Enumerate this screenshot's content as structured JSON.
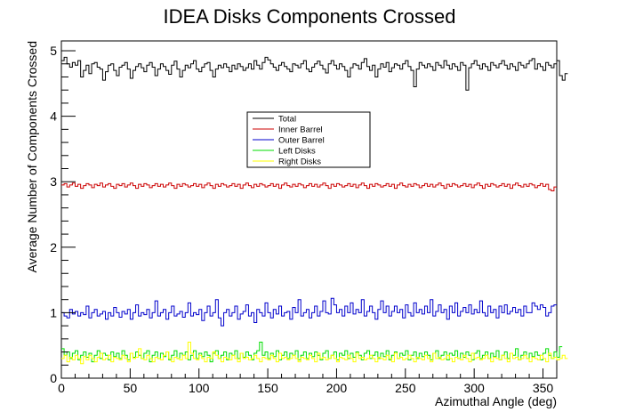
{
  "chart_data": {
    "type": "line",
    "title": "IDEA Disks Components Crossed",
    "xlabel": "Azimuthal Angle (deg)",
    "ylabel": "Average Number of Components Crossed",
    "xlim": [
      0,
      360
    ],
    "ylim": [
      0,
      5.15
    ],
    "x_ticks": [
      0,
      50,
      100,
      150,
      200,
      250,
      300,
      350
    ],
    "y_ticks": [
      0,
      1,
      2,
      3,
      4,
      5
    ],
    "bins": 180,
    "legend_position": "upper-center",
    "series": [
      {
        "name": "Total",
        "color": "#000000",
        "values": [
          4.85,
          4.9,
          4.8,
          4.75,
          4.82,
          4.78,
          4.85,
          4.6,
          4.7,
          4.78,
          4.65,
          4.8,
          4.82,
          4.75,
          4.72,
          4.55,
          4.68,
          4.78,
          4.8,
          4.7,
          4.62,
          4.75,
          4.78,
          4.82,
          4.72,
          4.58,
          4.7,
          4.76,
          4.8,
          4.74,
          4.68,
          4.78,
          4.82,
          4.75,
          4.62,
          4.72,
          4.8,
          4.76,
          4.7,
          4.64,
          4.78,
          4.84,
          4.72,
          4.6,
          4.7,
          4.78,
          4.74,
          4.8,
          4.85,
          4.72,
          4.68,
          4.75,
          4.8,
          4.82,
          4.7,
          4.6,
          4.72,
          4.78,
          4.74,
          4.8,
          4.75,
          4.68,
          4.78,
          4.72,
          4.8,
          4.76,
          4.7,
          4.74,
          4.8,
          4.72,
          4.85,
          4.78,
          4.72,
          4.82,
          4.9,
          4.86,
          4.8,
          4.75,
          4.7,
          4.78,
          4.82,
          4.76,
          4.72,
          4.68,
          4.8,
          4.78,
          4.74,
          4.8,
          4.85,
          4.72,
          4.68,
          4.75,
          4.8,
          4.84,
          4.78,
          4.72,
          4.66,
          4.8,
          4.85,
          4.78,
          4.72,
          4.8,
          4.76,
          4.7,
          4.6,
          4.74,
          4.8,
          4.78,
          4.72,
          4.82,
          4.88,
          4.76,
          4.7,
          4.78,
          4.6,
          4.72,
          4.8,
          4.75,
          4.82,
          4.68,
          4.74,
          4.8,
          4.78,
          4.72,
          4.8,
          4.85,
          4.76,
          4.7,
          4.45,
          4.72,
          4.82,
          4.78,
          4.74,
          4.8,
          4.76,
          4.7,
          4.82,
          4.78,
          4.74,
          4.85,
          4.78,
          4.72,
          4.8,
          4.76,
          4.7,
          4.82,
          4.78,
          4.4,
          4.74,
          4.8,
          4.85,
          4.78,
          4.72,
          4.8,
          4.76,
          4.7,
          4.82,
          4.78,
          4.74,
          4.8,
          4.85,
          4.78,
          4.72,
          4.8,
          4.76,
          4.7,
          4.82,
          4.78,
          4.74,
          4.8,
          4.85,
          4.88,
          4.72,
          4.8,
          4.76,
          4.7,
          4.82,
          4.78,
          4.74,
          4.8,
          4.85,
          4.62,
          4.55,
          4.65
        ]
      },
      {
        "name": "Inner Barrel",
        "color": "#cc0000",
        "values": [
          2.95,
          2.97,
          2.92,
          2.95,
          2.98,
          2.93,
          2.96,
          2.9,
          2.94,
          2.97,
          2.95,
          2.91,
          2.96,
          2.94,
          2.98,
          2.92,
          2.95,
          2.97,
          2.93,
          2.9,
          2.96,
          2.94,
          2.97,
          2.92,
          2.95,
          2.98,
          2.94,
          2.9,
          2.96,
          2.93,
          2.97,
          2.95,
          2.91,
          2.94,
          2.97,
          2.93,
          2.96,
          2.92,
          2.95,
          2.98,
          2.94,
          2.9,
          2.96,
          2.93,
          2.97,
          2.95,
          2.92,
          2.94,
          2.97,
          2.93,
          2.96,
          2.91,
          2.95,
          2.98,
          2.94,
          2.9,
          2.96,
          2.93,
          2.97,
          2.95,
          2.92,
          2.94,
          2.97,
          2.93,
          2.96,
          2.9,
          2.95,
          2.98,
          2.94,
          2.91,
          2.96,
          2.93,
          2.97,
          2.95,
          2.92,
          2.94,
          2.97,
          2.93,
          2.96,
          2.9,
          2.95,
          2.98,
          2.94,
          2.92,
          2.96,
          2.93,
          2.97,
          2.95,
          2.91,
          2.94,
          2.97,
          2.93,
          2.96,
          2.92,
          2.95,
          2.98,
          2.94,
          2.9,
          2.96,
          2.93,
          2.97,
          2.95,
          2.92,
          2.94,
          2.97,
          2.93,
          2.96,
          2.91,
          2.95,
          2.98,
          2.94,
          2.9,
          2.96,
          2.93,
          2.97,
          2.95,
          2.92,
          2.94,
          2.97,
          2.93,
          2.96,
          2.9,
          2.95,
          2.98,
          2.94,
          2.92,
          2.96,
          2.93,
          2.97,
          2.95,
          2.91,
          2.94,
          2.97,
          2.93,
          2.96,
          2.92,
          2.95,
          2.98,
          2.94,
          2.9,
          2.96,
          2.93,
          2.97,
          2.95,
          2.92,
          2.94,
          2.97,
          2.93,
          2.96,
          2.91,
          2.95,
          2.98,
          2.94,
          2.9,
          2.96,
          2.93,
          2.97,
          2.95,
          2.92,
          2.94,
          2.97,
          2.93,
          2.96,
          2.9,
          2.95,
          2.98,
          2.94,
          2.92,
          2.96,
          2.93,
          2.97,
          2.95,
          2.91,
          2.94,
          2.97,
          2.93,
          2.96,
          2.88,
          2.86,
          2.92
        ]
      },
      {
        "name": "Outer Barrel",
        "color": "#0000cc",
        "values": [
          1.0,
          0.95,
          0.92,
          1.05,
          0.98,
          1.02,
          0.95,
          1.0,
          0.97,
          1.1,
          0.92,
          1.0,
          1.05,
          0.95,
          0.98,
          1.02,
          0.9,
          1.0,
          0.95,
          1.08,
          1.0,
          0.93,
          1.02,
          0.98,
          1.05,
          0.9,
          1.0,
          1.12,
          0.95,
          1.0,
          0.97,
          1.05,
          0.92,
          1.0,
          1.18,
          0.95,
          1.0,
          1.05,
          0.9,
          1.0,
          1.1,
          0.95,
          0.98,
          1.02,
          0.93,
          1.0,
          1.15,
          0.95,
          1.0,
          0.97,
          1.05,
          0.88,
          1.0,
          1.1,
          0.95,
          1.0,
          1.2,
          0.92,
          0.8,
          1.0,
          1.05,
          0.95,
          1.0,
          1.1,
          0.9,
          0.98,
          1.02,
          1.12,
          0.95,
          1.0,
          0.85,
          1.05,
          1.0,
          0.95,
          1.15,
          1.0,
          0.92,
          1.05,
          0.98,
          1.1,
          0.95,
          1.0,
          1.02,
          0.9,
          1.08,
          1.0,
          1.2,
          0.95,
          1.0,
          1.05,
          0.92,
          1.0,
          1.1,
          0.95,
          1.02,
          1.18,
          1.0,
          0.98,
          1.22,
          1.12,
          1.0,
          1.05,
          0.95,
          1.1,
          1.0,
          1.15,
          0.98,
          1.05,
          1.0,
          1.2,
          0.95,
          1.02,
          1.1,
          1.0,
          0.9,
          1.05,
          1.18,
          1.0,
          1.1,
          0.95,
          1.02,
          1.1,
          1.0,
          1.05,
          0.92,
          1.12,
          1.0,
          0.95,
          1.15,
          1.0,
          1.05,
          0.98,
          1.1,
          1.0,
          1.2,
          0.95,
          1.02,
          1.12,
          1.0,
          1.05,
          0.9,
          1.1,
          1.0,
          1.15,
          0.95,
          1.02,
          1.08,
          1.0,
          1.12,
          0.98,
          1.05,
          1.0,
          1.18,
          1.0,
          0.95,
          1.1,
          1.0,
          1.05,
          0.92,
          1.1,
          1.0,
          1.12,
          0.98,
          1.02,
          1.08,
          1.0,
          1.05,
          0.95,
          1.1,
          1.0,
          1.0,
          1.15,
          1.1,
          1.05,
          1.12,
          1.08,
          0.95,
          1.0,
          1.1,
          1.12
        ]
      },
      {
        "name": "Left Disks",
        "color": "#00dd00",
        "values": [
          0.45,
          0.35,
          0.4,
          0.3,
          0.38,
          0.42,
          0.28,
          0.35,
          0.4,
          0.32,
          0.38,
          0.25,
          0.35,
          0.42,
          0.3,
          0.38,
          0.35,
          0.28,
          0.4,
          0.33,
          0.38,
          0.3,
          0.42,
          0.35,
          0.28,
          0.38,
          0.32,
          0.4,
          0.35,
          0.3,
          0.38,
          0.42,
          0.25,
          0.35,
          0.4,
          0.3,
          0.38,
          0.33,
          0.4,
          0.28,
          0.35,
          0.42,
          0.3,
          0.38,
          0.35,
          0.4,
          0.28,
          0.35,
          0.42,
          0.3,
          0.38,
          0.33,
          0.4,
          0.35,
          0.25,
          0.38,
          0.42,
          0.3,
          0.35,
          0.4,
          0.28,
          0.38,
          0.35,
          0.42,
          0.3,
          0.38,
          0.32,
          0.4,
          0.35,
          0.28,
          0.38,
          0.42,
          0.55,
          0.35,
          0.4,
          0.3,
          0.38,
          0.33,
          0.42,
          0.28,
          0.35,
          0.4,
          0.3,
          0.38,
          0.35,
          0.42,
          0.28,
          0.35,
          0.4,
          0.3,
          0.38,
          0.33,
          0.4,
          0.35,
          0.28,
          0.38,
          0.42,
          0.3,
          0.35,
          0.4,
          0.28,
          0.38,
          0.35,
          0.42,
          0.3,
          0.38,
          0.32,
          0.4,
          0.35,
          0.28,
          0.38,
          0.42,
          0.3,
          0.35,
          0.4,
          0.3,
          0.38,
          0.33,
          0.42,
          0.28,
          0.35,
          0.4,
          0.3,
          0.38,
          0.35,
          0.42,
          0.28,
          0.35,
          0.4,
          0.3,
          0.38,
          0.33,
          0.4,
          0.35,
          0.28,
          0.38,
          0.42,
          0.3,
          0.35,
          0.4,
          0.28,
          0.38,
          0.35,
          0.42,
          0.3,
          0.38,
          0.32,
          0.4,
          0.35,
          0.28,
          0.38,
          0.42,
          0.3,
          0.35,
          0.4,
          0.3,
          0.38,
          0.33,
          0.42,
          0.28,
          0.35,
          0.4,
          0.3,
          0.38,
          0.35,
          0.45,
          0.28,
          0.35,
          0.4,
          0.3,
          0.38,
          0.33,
          0.4,
          0.35,
          0.28,
          0.38,
          0.45,
          0.35,
          0.3,
          0.4,
          0.32,
          0.48
        ]
      },
      {
        "name": "Right Disks",
        "color": "#ffff00",
        "values": [
          0.3,
          0.35,
          0.25,
          0.32,
          0.28,
          0.35,
          0.3,
          0.22,
          0.33,
          0.28,
          0.35,
          0.3,
          0.25,
          0.32,
          0.38,
          0.28,
          0.3,
          0.35,
          0.25,
          0.32,
          0.3,
          0.28,
          0.35,
          0.3,
          0.25,
          0.38,
          0.3,
          0.32,
          0.45,
          0.3,
          0.28,
          0.35,
          0.3,
          0.25,
          0.32,
          0.3,
          0.28,
          0.35,
          0.4,
          0.3,
          0.25,
          0.32,
          0.3,
          0.28,
          0.35,
          0.3,
          0.55,
          0.38,
          0.3,
          0.28,
          0.35,
          0.3,
          0.25,
          0.32,
          0.3,
          0.4,
          0.35,
          0.3,
          0.25,
          0.32,
          0.3,
          0.28,
          0.35,
          0.3,
          0.25,
          0.38,
          0.3,
          0.32,
          0.28,
          0.3,
          0.35,
          0.3,
          0.25,
          0.32,
          0.3,
          0.28,
          0.35,
          0.3,
          0.25,
          0.38,
          0.3,
          0.32,
          0.28,
          0.3,
          0.35,
          0.3,
          0.25,
          0.32,
          0.3,
          0.28,
          0.35,
          0.3,
          0.25,
          0.38,
          0.3,
          0.32,
          0.28,
          0.3,
          0.35,
          0.3,
          0.25,
          0.32,
          0.3,
          0.28,
          0.35,
          0.3,
          0.25,
          0.38,
          0.3,
          0.32,
          0.28,
          0.3,
          0.35,
          0.3,
          0.25,
          0.32,
          0.3,
          0.28,
          0.35,
          0.3,
          0.25,
          0.38,
          0.3,
          0.32,
          0.28,
          0.3,
          0.35,
          0.3,
          0.25,
          0.32,
          0.3,
          0.28,
          0.35,
          0.3,
          0.25,
          0.38,
          0.3,
          0.32,
          0.28,
          0.3,
          0.35,
          0.3,
          0.25,
          0.32,
          0.3,
          0.28,
          0.35,
          0.3,
          0.25,
          0.38,
          0.3,
          0.32,
          0.28,
          0.3,
          0.35,
          0.3,
          0.25,
          0.32,
          0.3,
          0.28,
          0.35,
          0.3,
          0.25,
          0.38,
          0.3,
          0.32,
          0.28,
          0.3,
          0.35,
          0.3,
          0.25,
          0.32,
          0.3,
          0.28,
          0.35,
          0.3,
          0.25,
          0.38,
          0.3,
          0.32,
          0.28,
          0.3,
          0.35,
          0.3
        ]
      }
    ]
  }
}
